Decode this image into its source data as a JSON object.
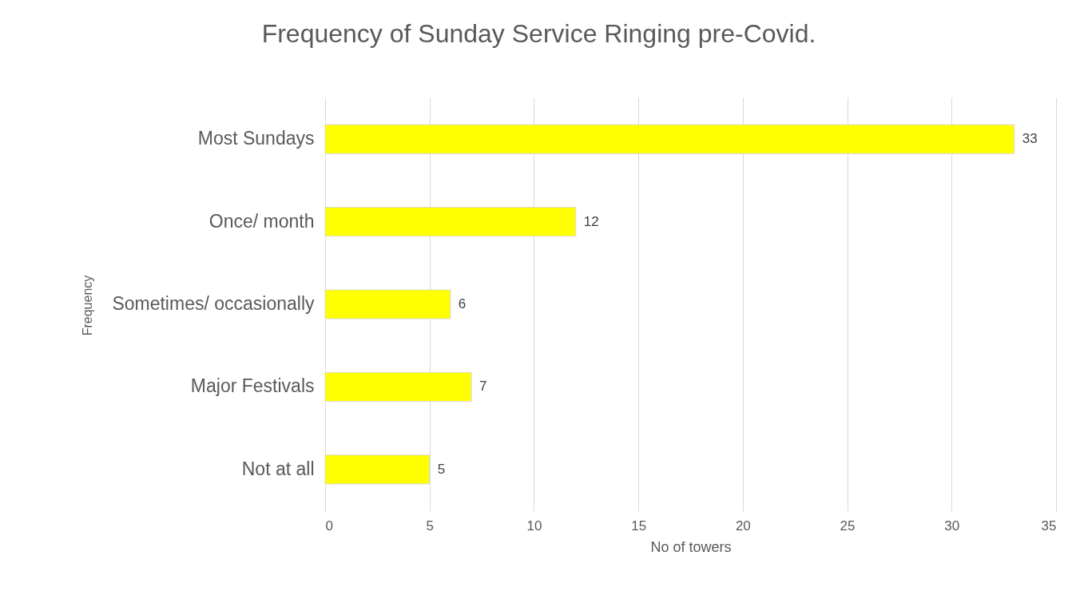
{
  "chart_data": {
    "type": "bar",
    "orientation": "horizontal",
    "title": "Frequency of Sunday Service Ringing pre-Covid.",
    "xlabel": "No of towers",
    "ylabel": "Frequency",
    "categories": [
      "Most Sundays",
      "Once/ month",
      "Sometimes/ occasionally",
      "Major Festivals",
      "Not at all"
    ],
    "values": [
      33,
      12,
      6,
      7,
      5
    ],
    "color": "#ffff00",
    "xlim": [
      0,
      35
    ],
    "xticks": [
      0,
      5,
      10,
      15,
      20,
      25,
      30,
      35
    ],
    "grid": "x",
    "data_labels": true
  }
}
